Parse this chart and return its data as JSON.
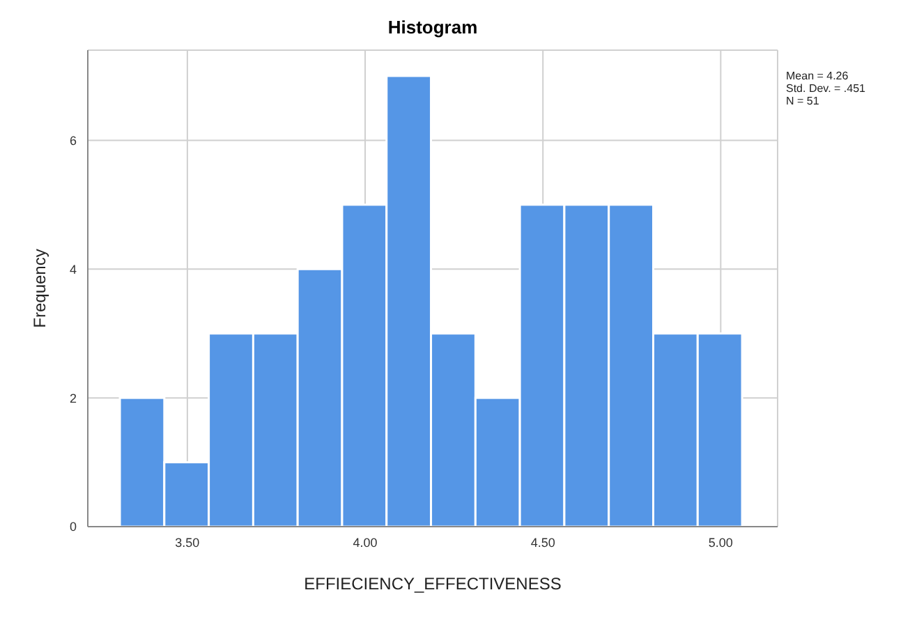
{
  "chart_data": {
    "type": "histogram",
    "title": "Histogram",
    "xlabel": "EFFIECIENCY_EFFECTIVENESS",
    "ylabel": "Frequency",
    "bins": [
      3.31,
      3.435,
      3.56,
      3.685,
      3.81,
      3.935,
      4.06,
      4.185,
      4.31,
      4.435,
      4.56,
      4.685,
      4.81,
      4.935,
      5.06
    ],
    "values": [
      2,
      1,
      3,
      3,
      4,
      5,
      7,
      3,
      2,
      5,
      5,
      5,
      3,
      3
    ],
    "color": "#5596e6",
    "xlim": [
      3.22,
      5.16
    ],
    "xticks": [
      {
        "value": 3.5,
        "label": "3.50"
      },
      {
        "value": 4,
        "label": "4.00"
      },
      {
        "value": 4.5,
        "label": "4.50"
      },
      {
        "value": 5,
        "label": "5.00"
      }
    ],
    "ylim": [
      0,
      7.4
    ],
    "yticks": [
      0,
      2,
      4,
      6
    ],
    "grid": true,
    "annotations": [
      "Mean = 4.26",
      "Std. Dev. = .451",
      "N = 51"
    ]
  }
}
